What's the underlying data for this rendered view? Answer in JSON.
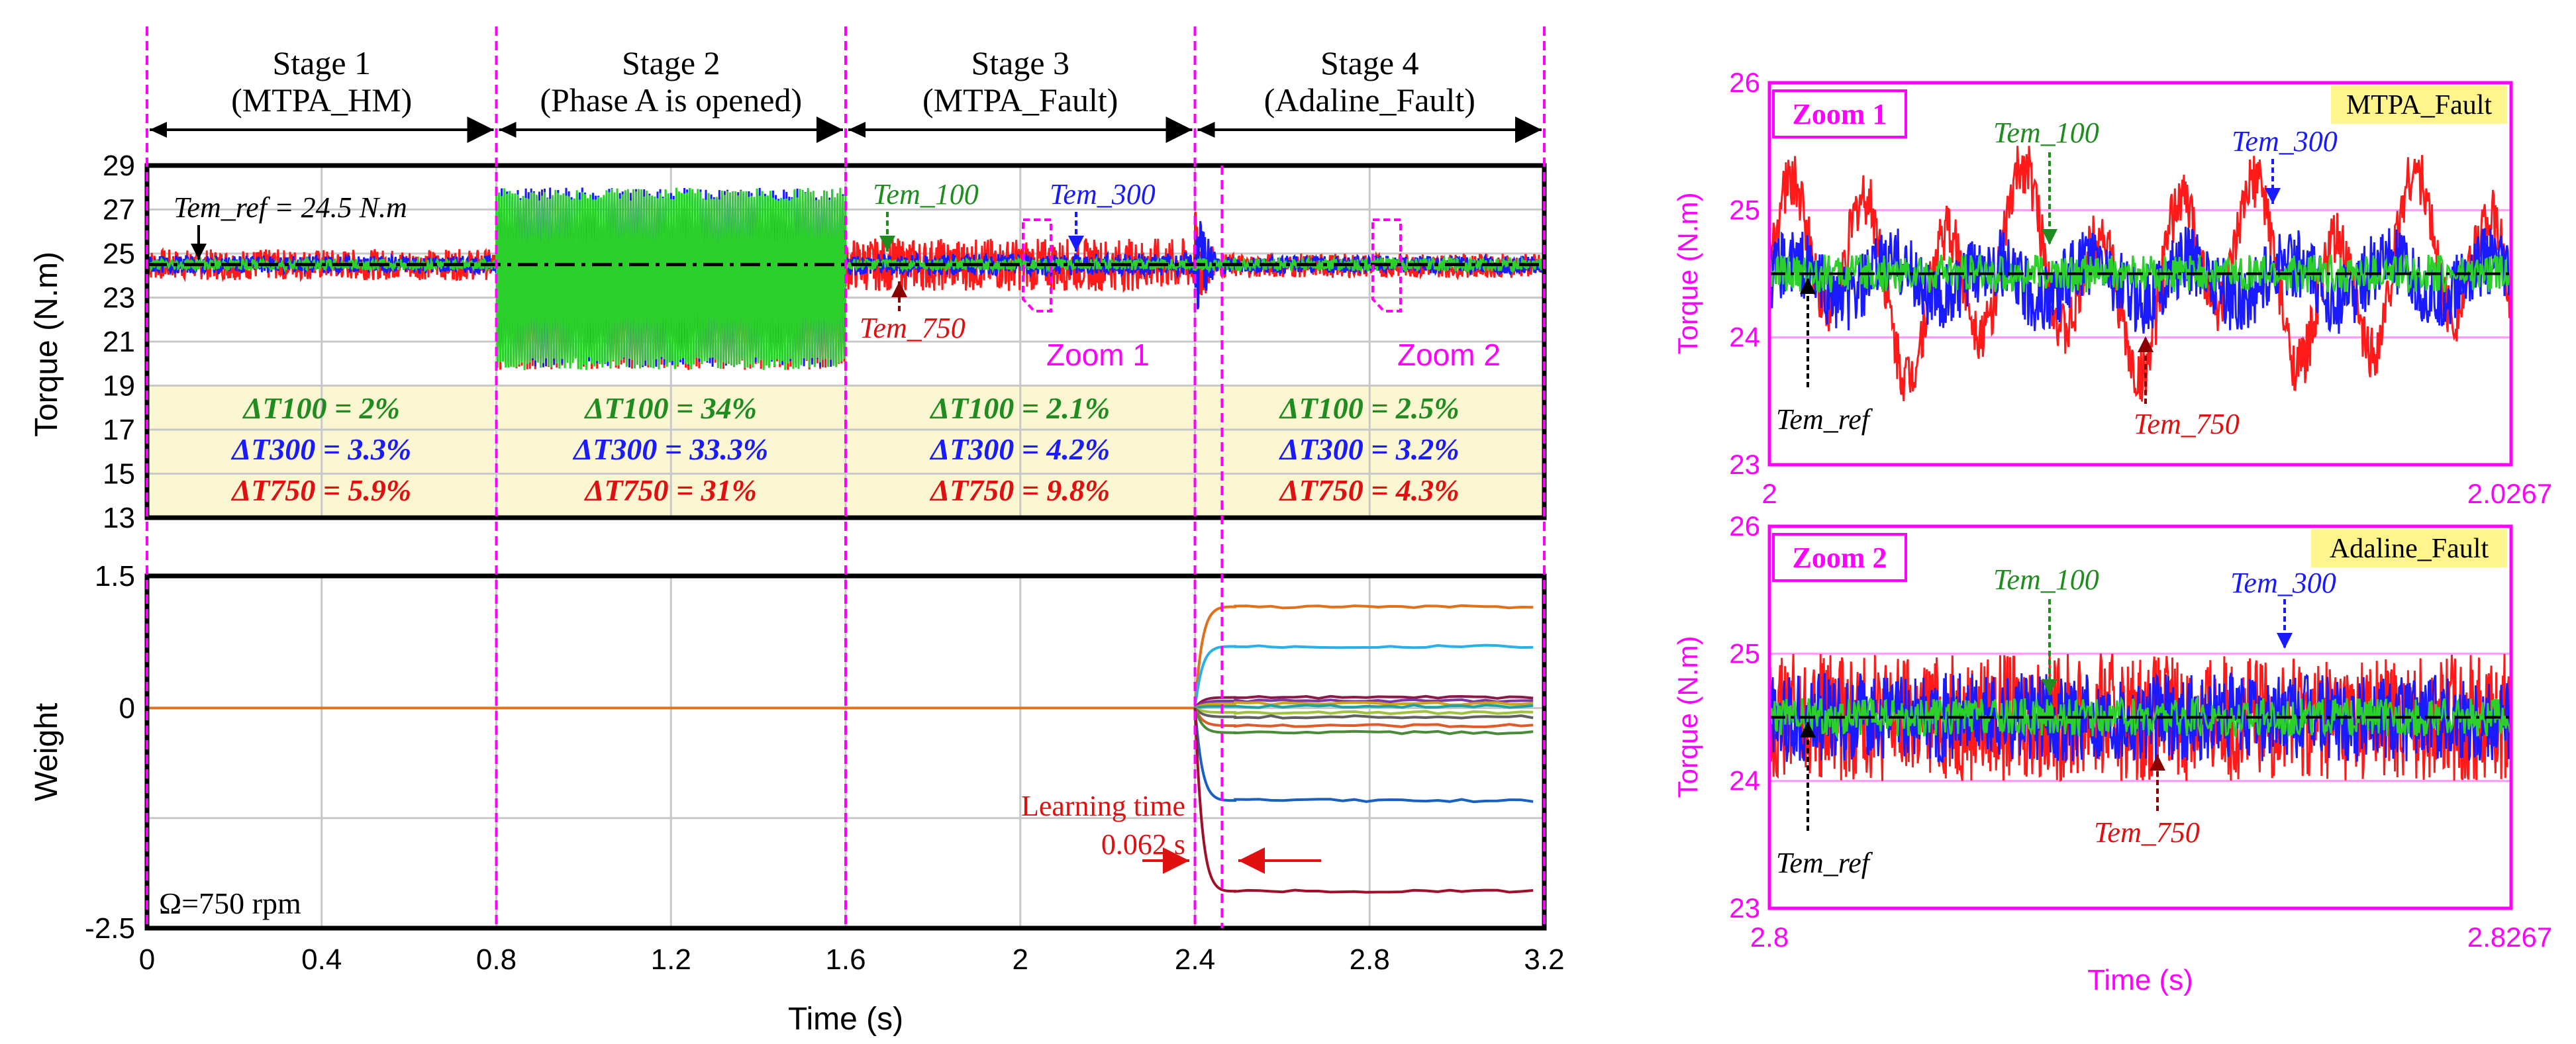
{
  "figure": {
    "colors": {
      "t100": "#2bd02b",
      "t300": "#1a1aff",
      "t750": "#ff1a1a",
      "ref": "#000000",
      "magenta": "#ff00ff",
      "ann_green": "#1f8c1f",
      "ann_blue": "#1a1aff",
      "ann_red": "#e01010",
      "ann_darkred": "#8b0000",
      "box_fill": "#fbf6d2",
      "highlight": "#fff58c"
    },
    "stages": [
      {
        "title": "Stage 1",
        "subtitle": "(MTPA_HM)"
      },
      {
        "title": "Stage 2",
        "subtitle": "(Phase A is opened)"
      },
      {
        "title": "Stage 3",
        "subtitle": "(MTPA_Fault)"
      },
      {
        "title": "Stage 4",
        "subtitle": "(Adaline_Fault)"
      }
    ],
    "ripples": [
      {
        "t100": "ΔT100 = 2%",
        "t300": "ΔT300 = 3.3%",
        "t750": "ΔT750 = 5.9%"
      },
      {
        "t100": "ΔT100 = 34%",
        "t300": "ΔT300 = 33.3%",
        "t750": "ΔT750 = 31%"
      },
      {
        "t100": "ΔT100 = 2.1%",
        "t300": "ΔT300 = 4.2%",
        "t750": "ΔT750 = 9.8%"
      },
      {
        "t100": "ΔT100 = 2.5%",
        "t300": "ΔT300 = 3.2%",
        "t750": "ΔT750 = 4.3%"
      }
    ],
    "labels": {
      "tem_ref_value": "Tem_ref = 24.5 N.m",
      "tem_100": "Tem_100",
      "tem_300": "Tem_300",
      "tem_750": "Tem_750",
      "tem_ref": "Tem_ref",
      "zoom1_callout": "Zoom 1",
      "zoom2_callout": "Zoom 2",
      "learning_time": "Learning time",
      "learning_value": "0.062 s",
      "speed": "Ω=750 rpm"
    }
  },
  "chart_data": [
    {
      "type": "line",
      "id": "torque",
      "ylabel": "Torque (N.m)",
      "xlim": [
        0,
        3.2
      ],
      "ylim": [
        13,
        29
      ],
      "yticks": [
        "13",
        "15",
        "17",
        "19",
        "21",
        "23",
        "25",
        "27",
        "29"
      ],
      "grid": true,
      "reference": 24.5,
      "series": [
        {
          "name": "Tem_100",
          "stage_bands": [
            [
              24.25,
              24.75
            ],
            [
              19.7,
              28.0
            ],
            [
              24.25,
              24.75
            ],
            [
              24.2,
              24.8
            ]
          ]
        },
        {
          "name": "Tem_300",
          "stage_bands": [
            [
              24.1,
              24.9
            ],
            [
              19.8,
              28.0
            ],
            [
              24.0,
              25.0
            ],
            [
              24.1,
              24.9
            ]
          ]
        },
        {
          "name": "Tem_750",
          "stage_bands": [
            [
              23.8,
              25.2
            ],
            [
              19.7,
              27.3
            ],
            [
              23.3,
              25.7
            ],
            [
              23.9,
              25.0
            ]
          ]
        }
      ]
    },
    {
      "type": "line",
      "id": "weight",
      "ylabel": "Weight",
      "xlabel": "Time (s)",
      "xlim": [
        0,
        3.2
      ],
      "xticks": [
        "0",
        "0.4",
        "0.8",
        "1.2",
        "1.6",
        "2",
        "2.4",
        "2.8",
        "3.2"
      ],
      "ylim": [
        -2.5,
        1.5
      ],
      "yticks": [
        "-2.5",
        "0",
        "1.5"
      ],
      "grid": true,
      "weights_after_adaptation": [
        1.15,
        0.7,
        0.12,
        0.08,
        0.05,
        0.02,
        -0.05,
        -0.1,
        -0.2,
        -0.28,
        -1.05,
        -2.08
      ],
      "learning_start": 2.4,
      "learning_end": 2.462
    },
    {
      "type": "line",
      "id": "zoom1",
      "title_box": "Zoom 1",
      "tag": "MTPA_Fault",
      "ylabel": "Torque (N.m)",
      "xlim": [
        2,
        2.0267
      ],
      "xtick_labels": [
        "2",
        "2.0267"
      ],
      "ylim": [
        23,
        26
      ],
      "yticks": [
        "23",
        "24",
        "25",
        "26"
      ],
      "series": [
        {
          "name": "Tem_750",
          "mean": 24.5,
          "range": [
            23.3,
            25.6
          ]
        },
        {
          "name": "Tem_300",
          "mean": 24.45,
          "range": [
            24.0,
            24.95
          ]
        },
        {
          "name": "Tem_100",
          "mean": 24.5,
          "range": [
            24.35,
            24.65
          ]
        }
      ],
      "reference": 24.5
    },
    {
      "type": "line",
      "id": "zoom2",
      "title_box": "Zoom 2",
      "tag": "Adaline_Fault",
      "ylabel": "Torque (N.m)",
      "xlabel": "Time (s)",
      "xlim": [
        2.8,
        2.8267
      ],
      "xtick_labels": [
        "2.8",
        "2.8267"
      ],
      "ylim": [
        23,
        26
      ],
      "yticks": [
        "23",
        "24",
        "25",
        "26"
      ],
      "series": [
        {
          "name": "Tem_750",
          "mean": 24.5,
          "range": [
            24.0,
            25.0
          ]
        },
        {
          "name": "Tem_300",
          "mean": 24.5,
          "range": [
            24.15,
            24.85
          ]
        },
        {
          "name": "Tem_100",
          "mean": 24.5,
          "range": [
            24.35,
            24.65
          ]
        }
      ],
      "reference": 24.5
    }
  ]
}
